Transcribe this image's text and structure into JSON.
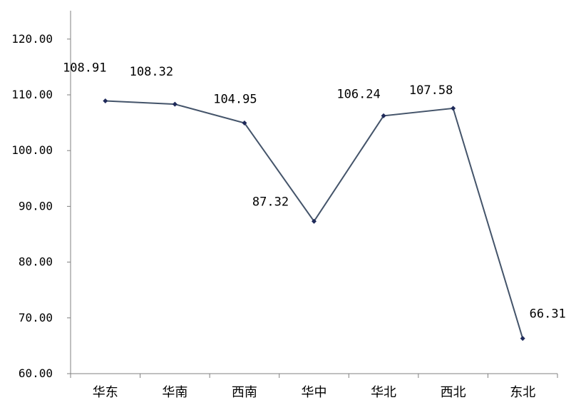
{
  "chart_data": {
    "type": "line",
    "categories": [
      "华东",
      "华南",
      "西南",
      "华中",
      "华北",
      "西北",
      "东北"
    ],
    "values": [
      108.91,
      108.32,
      104.95,
      87.32,
      106.24,
      107.58,
      66.31
    ],
    "data_labels": [
      "108.91",
      "108.32",
      "104.95",
      "87.32",
      "106.24",
      "107.58",
      "66.31"
    ],
    "y_ticks": [
      "60.00",
      "70.00",
      "80.00",
      "90.00",
      "100.00",
      "110.00",
      "120.00"
    ],
    "ylim": [
      60,
      125
    ],
    "grid": false,
    "line_color": "#44546a",
    "marker_color": "#1f2a5a",
    "axis_color": "#808080"
  }
}
